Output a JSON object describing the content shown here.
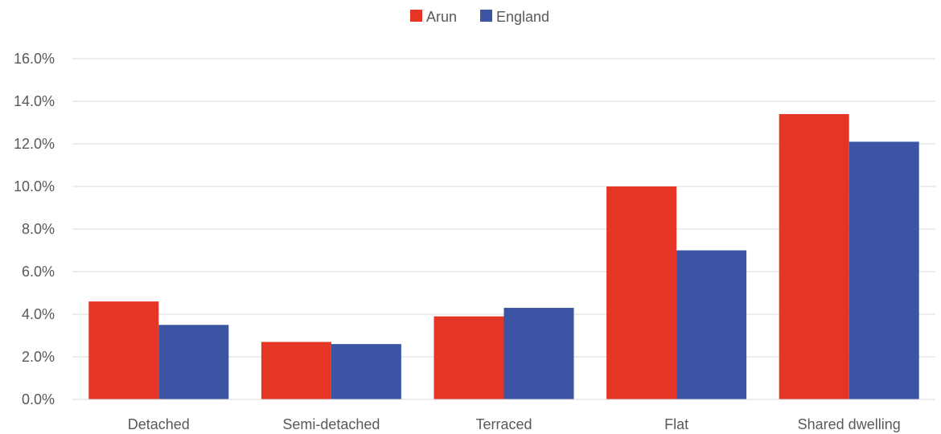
{
  "chart_data": {
    "type": "bar",
    "categories": [
      "Detached",
      "Semi-detached",
      "Terraced",
      "Flat",
      "Shared dwelling"
    ],
    "series": [
      {
        "name": "Arun",
        "color": "#e53524",
        "values": [
          4.6,
          2.7,
          3.9,
          10.0,
          13.4
        ]
      },
      {
        "name": "England",
        "color": "#3b55a4",
        "values": [
          3.5,
          2.6,
          4.3,
          7.0,
          12.1
        ]
      }
    ],
    "title": "",
    "xlabel": "",
    "ylabel": "",
    "ylim": [
      0,
      16
    ],
    "y_ticks": [
      "0.0%",
      "2.0%",
      "4.0%",
      "6.0%",
      "8.0%",
      "10.0%",
      "12.0%",
      "14.0%",
      "16.0%"
    ],
    "y_tick_values": [
      0,
      2,
      4,
      6,
      8,
      10,
      12,
      14,
      16
    ],
    "grid": true,
    "legend_position": "top-center"
  }
}
